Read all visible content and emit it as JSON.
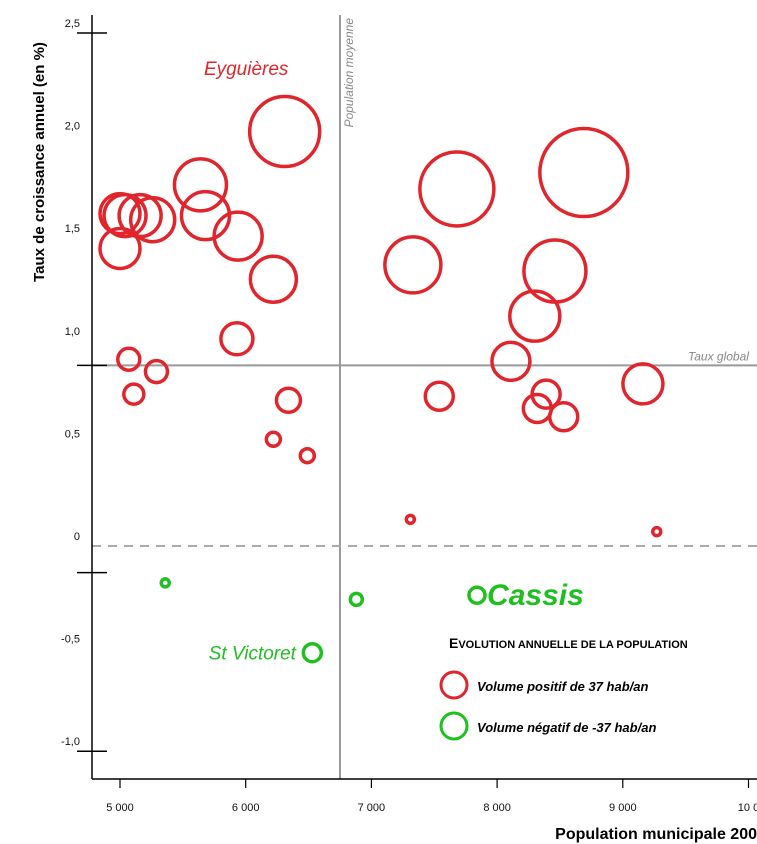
{
  "chart_data": {
    "type": "scatter",
    "title": "",
    "xlabel": "Population municipale 200",
    "ylabel": "Taux de croissance annuel (en %)",
    "xlim": [
      4780,
      10050
    ],
    "ylim": [
      -1.15,
      2.6
    ],
    "x_ticks": [
      {
        "value": 5000,
        "label": "5 000"
      },
      {
        "value": 6000,
        "label": "6 000"
      },
      {
        "value": 7000,
        "label": "7 000"
      },
      {
        "value": 8000,
        "label": "8 000"
      },
      {
        "value": 9000,
        "label": "9 000"
      },
      {
        "value": 10000,
        "label": "10 0"
      }
    ],
    "y_ticks": [
      {
        "value": 2.5,
        "label": "2,5"
      },
      {
        "value": 2.0,
        "label": "2,0"
      },
      {
        "value": 1.5,
        "label": "1,5"
      },
      {
        "value": 1.0,
        "label": "1,0"
      },
      {
        "value": 0.5,
        "label": "0,5"
      },
      {
        "value": 0,
        "label": "0"
      },
      {
        "value": -0.5,
        "label": "-0,5"
      },
      {
        "value": -1.0,
        "label": "-1,0"
      }
    ],
    "reference_lines": {
      "x_mean": {
        "value": 6750,
        "label": "Population moyenne"
      },
      "y_global": {
        "value": 0.88,
        "label": "Taux global"
      }
    },
    "colors": {
      "positive": "#e0262c",
      "negative": "#1fbf1f",
      "grid": "#999999"
    },
    "points": [
      {
        "x": 6310,
        "y": 2.02,
        "r": 35,
        "sign": "positive"
      },
      {
        "x": 5640,
        "y": 1.76,
        "r": 26,
        "sign": "positive"
      },
      {
        "x": 5000,
        "y": 1.62,
        "r": 20,
        "sign": "positive"
      },
      {
        "x": 5040,
        "y": 1.61,
        "r": 21,
        "sign": "positive"
      },
      {
        "x": 5160,
        "y": 1.61,
        "r": 21,
        "sign": "positive"
      },
      {
        "x": 5260,
        "y": 1.59,
        "r": 22,
        "sign": "positive"
      },
      {
        "x": 5680,
        "y": 1.61,
        "r": 24,
        "sign": "positive"
      },
      {
        "x": 5940,
        "y": 1.51,
        "r": 24,
        "sign": "positive"
      },
      {
        "x": 5000,
        "y": 1.45,
        "r": 20,
        "sign": "positive"
      },
      {
        "x": 6220,
        "y": 1.3,
        "r": 23,
        "sign": "positive"
      },
      {
        "x": 5930,
        "y": 1.01,
        "r": 16,
        "sign": "positive"
      },
      {
        "x": 5070,
        "y": 0.91,
        "r": 11,
        "sign": "positive"
      },
      {
        "x": 5290,
        "y": 0.85,
        "r": 11,
        "sign": "positive"
      },
      {
        "x": 5110,
        "y": 0.74,
        "r": 10,
        "sign": "positive"
      },
      {
        "x": 6340,
        "y": 0.71,
        "r": 12,
        "sign": "positive"
      },
      {
        "x": 6220,
        "y": 0.52,
        "r": 7,
        "sign": "positive"
      },
      {
        "x": 6490,
        "y": 0.44,
        "r": 7,
        "sign": "positive"
      },
      {
        "x": 7680,
        "y": 1.74,
        "r": 37,
        "sign": "positive"
      },
      {
        "x": 8690,
        "y": 1.82,
        "r": 44,
        "sign": "positive"
      },
      {
        "x": 7330,
        "y": 1.37,
        "r": 28,
        "sign": "positive"
      },
      {
        "x": 8460,
        "y": 1.34,
        "r": 31,
        "sign": "positive"
      },
      {
        "x": 8300,
        "y": 1.12,
        "r": 25,
        "sign": "positive"
      },
      {
        "x": 8110,
        "y": 0.9,
        "r": 19,
        "sign": "positive"
      },
      {
        "x": 9160,
        "y": 0.79,
        "r": 20,
        "sign": "positive"
      },
      {
        "x": 7540,
        "y": 0.73,
        "r": 14,
        "sign": "positive"
      },
      {
        "x": 8390,
        "y": 0.74,
        "r": 14,
        "sign": "positive"
      },
      {
        "x": 8320,
        "y": 0.67,
        "r": 14,
        "sign": "positive"
      },
      {
        "x": 8530,
        "y": 0.63,
        "r": 14,
        "sign": "positive"
      },
      {
        "x": 7310,
        "y": 0.13,
        "r": 4,
        "sign": "positive"
      },
      {
        "x": 9270,
        "y": 0.07,
        "r": 4,
        "sign": "positive"
      },
      {
        "x": 5360,
        "y": -0.18,
        "r": 4,
        "sign": "negative"
      },
      {
        "x": 6880,
        "y": -0.26,
        "r": 6,
        "sign": "negative"
      },
      {
        "x": 7840,
        "y": -0.24,
        "r": 8,
        "sign": "negative"
      },
      {
        "x": 6530,
        "y": -0.52,
        "r": 9,
        "sign": "negative"
      }
    ],
    "annotations": [
      {
        "text": "Eyguières",
        "x": 6340,
        "y": 2.33,
        "anchor": "end",
        "color": "positive",
        "size": "medium"
      },
      {
        "text": "Cassis",
        "x": 7920,
        "y": -0.24,
        "anchor": "start",
        "color": "negative",
        "size": "large"
      },
      {
        "text": "St Victoret",
        "x": 6400,
        "y": -0.52,
        "anchor": "end",
        "color": "negative",
        "size": "medium"
      }
    ],
    "legend": {
      "title_first": "E",
      "title_rest": "VOLUTION ANNUELLE DE LA POPULATION",
      "items": [
        {
          "label": "Volume positif de 37 hab/an",
          "sign": "positive"
        },
        {
          "label": "Volume négatif de -37 hab/an",
          "sign": "negative"
        }
      ]
    }
  }
}
